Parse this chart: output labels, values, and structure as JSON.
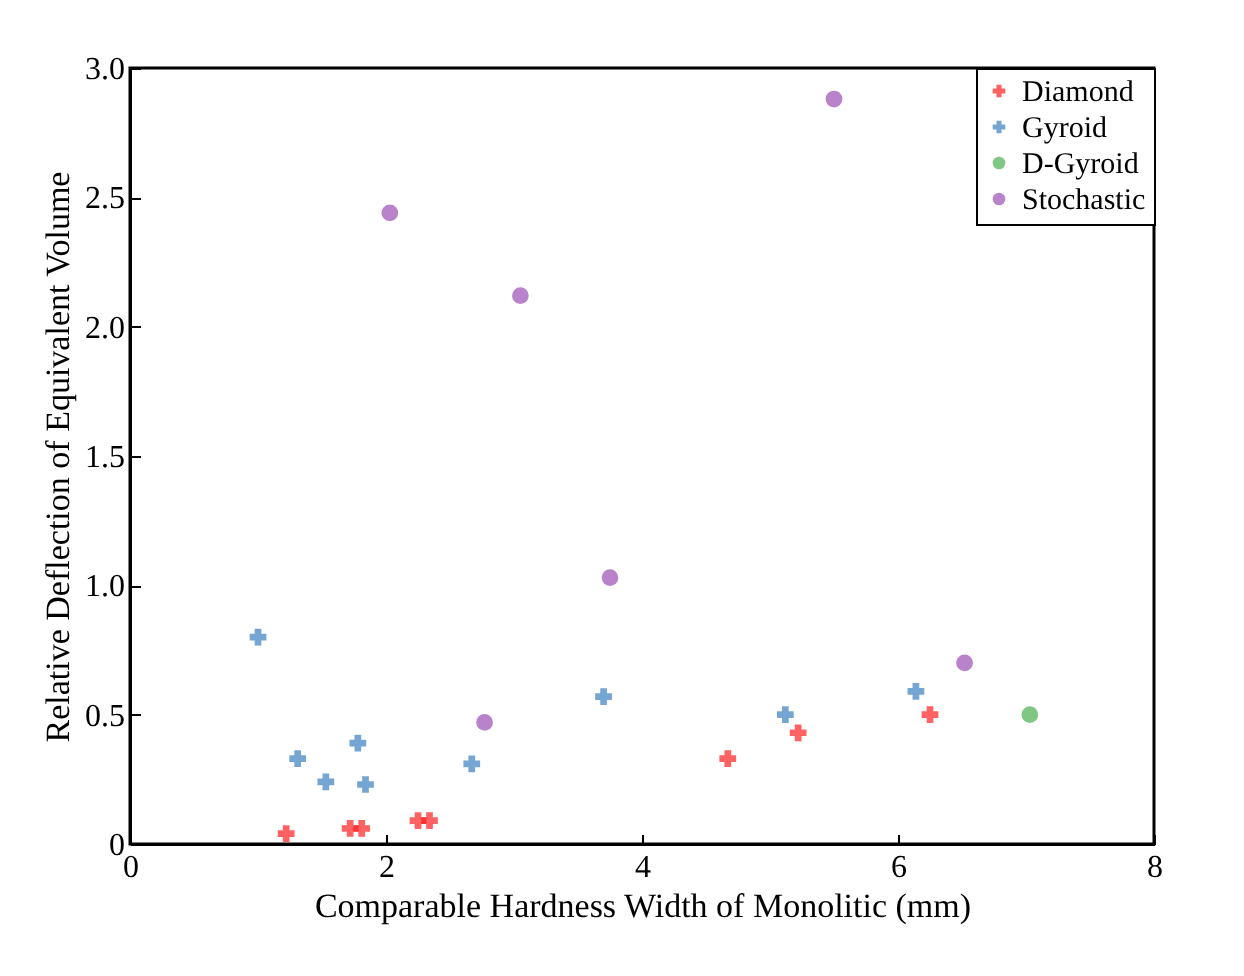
{
  "chart_data": {
    "type": "scatter",
    "xlabel": "Comparable Hardness Width of Monolitic (mm)",
    "ylabel": "Relative Deflection of Equivalent Volume",
    "xlim": [
      0,
      8
    ],
    "xticks": [
      0,
      2,
      4,
      6,
      8
    ],
    "ylim": [
      0,
      3
    ],
    "yticks": [
      0,
      0.5,
      {
        "value": 1,
        "label": "1.0"
      },
      1.5,
      {
        "value": 2,
        "label": "2.0"
      },
      2.5,
      {
        "value": 3,
        "label": "3.0"
      }
    ],
    "legend": "top right",
    "grid": false,
    "series": [
      {
        "name": "Diamond",
        "color": "#ff2020",
        "marker": "cross",
        "x": [
          1.22,
          1.72,
          1.81,
          2.25,
          2.34,
          4.67,
          5.22,
          6.25
        ],
        "values": [
          0.04,
          0.06,
          0.06,
          0.09,
          0.09,
          0.33,
          0.43,
          0.5
        ]
      },
      {
        "name": "Gyroid",
        "color": "#3a7fc0",
        "marker": "cross",
        "x": [
          1.0,
          1.31,
          1.53,
          1.78,
          1.84,
          2.67,
          3.7,
          5.12,
          6.14
        ],
        "values": [
          0.8,
          0.33,
          0.24,
          0.39,
          0.23,
          0.31,
          0.57,
          0.5,
          0.59
        ]
      },
      {
        "name": "D-Gyroid",
        "color": "#4caf50",
        "marker": "circle",
        "x": [
          7.03
        ],
        "values": [
          0.5
        ]
      },
      {
        "name": "Stochastic",
        "color": "#9b4fb5",
        "marker": "circle",
        "x": [
          2.77,
          3.75,
          6.52,
          2.03,
          3.05,
          5.5
        ],
        "values": [
          0.47,
          1.03,
          0.7,
          2.44,
          2.12,
          2.88
        ]
      }
    ]
  }
}
